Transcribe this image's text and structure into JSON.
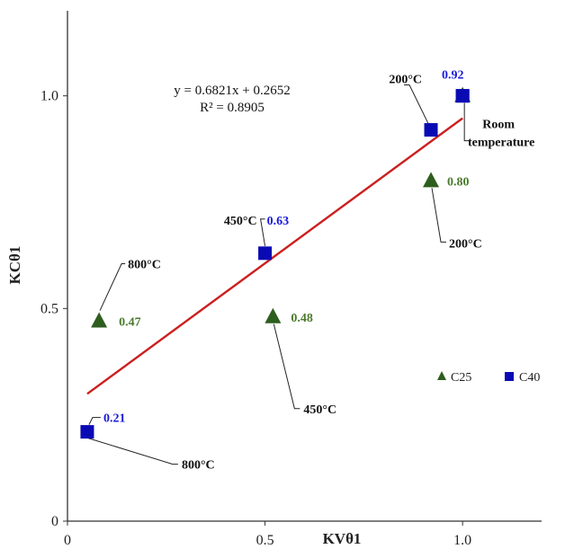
{
  "chart_data": {
    "type": "scatter",
    "xlabel": "KVθ1",
    "ylabel": "KCθ1",
    "xlim": [
      0,
      1.2
    ],
    "ylim": [
      0,
      1.2
    ],
    "xticks": [
      "0",
      "0.5",
      "1.0"
    ],
    "yticks": [
      "0",
      "0.5",
      "1.0"
    ],
    "xtick_values": [
      0,
      0.5,
      1.0
    ],
    "ytick_values": [
      0,
      0.5,
      1.0
    ],
    "grid": false,
    "legend_position": "bottom-right",
    "series": [
      {
        "name": "C25",
        "marker": "triangle",
        "color": "#2e5e1e",
        "label_color": "#4a7a2c",
        "points": [
          {
            "x": 0.08,
            "y": 0.47,
            "value_label": "0.47",
            "annotation": "800°C"
          },
          {
            "x": 0.52,
            "y": 0.48,
            "value_label": "0.48",
            "annotation": "450°C"
          },
          {
            "x": 0.92,
            "y": 0.8,
            "value_label": "0.80",
            "annotation": "200°C"
          },
          {
            "x": 1.0,
            "y": 1.0,
            "value_label": "",
            "annotation": ""
          }
        ]
      },
      {
        "name": "C40",
        "marker": "square",
        "color": "#0a0ab4",
        "label_color": "#1a1adc",
        "points": [
          {
            "x": 0.05,
            "y": 0.21,
            "value_label": "0.21",
            "annotation": "800°C"
          },
          {
            "x": 0.5,
            "y": 0.63,
            "value_label": "0.63",
            "annotation": "450°C"
          },
          {
            "x": 0.92,
            "y": 0.92,
            "value_label": "0.92",
            "annotation": "200°C"
          },
          {
            "x": 1.0,
            "y": 1.0,
            "value_label": "",
            "annotation": "Room temperature"
          }
        ]
      }
    ],
    "trendline": {
      "slope": 0.6821,
      "intercept": 0.2652,
      "x_range": [
        0.05,
        1.0
      ],
      "color": "#cc1f1f",
      "equation_text": "y = 0.6821x + 0.2652",
      "r2_text": "R² = 0.8905"
    }
  }
}
